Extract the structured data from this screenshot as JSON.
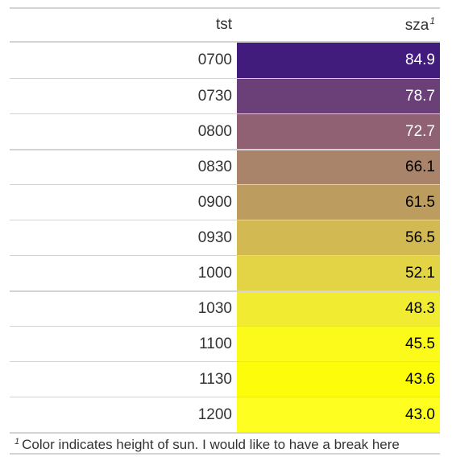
{
  "table": {
    "columns": {
      "tst": "tst",
      "sza": "sza",
      "sza_footnote_mark": "1"
    },
    "rows": [
      {
        "tst": "0700",
        "sza": "84.9",
        "color": "#411c7d",
        "text_light": true
      },
      {
        "tst": "0730",
        "sza": "78.7",
        "color": "#6b4078",
        "text_light": true
      },
      {
        "tst": "0800",
        "sza": "72.7",
        "color": "#8f6172",
        "text_light": true
      },
      {
        "tst": "0830",
        "sza": "66.1",
        "color": "#a9836a",
        "text_light": false
      },
      {
        "tst": "0900",
        "sza": "61.5",
        "color": "#bd9d5f",
        "text_light": false
      },
      {
        "tst": "0930",
        "sza": "56.5",
        "color": "#d2b952",
        "text_light": false
      },
      {
        "tst": "1000",
        "sza": "52.1",
        "color": "#e3d445",
        "text_light": false
      },
      {
        "tst": "1030",
        "sza": "48.3",
        "color": "#f1eb32",
        "text_light": false
      },
      {
        "tst": "1100",
        "sza": "45.5",
        "color": "#fbfa1a",
        "text_light": false
      },
      {
        "tst": "1130",
        "sza": "43.6",
        "color": "#fdfd0b",
        "text_light": false
      },
      {
        "tst": "1200",
        "sza": "43.0",
        "color": "#feff20",
        "text_light": false
      }
    ],
    "footnote": {
      "mark": "1",
      "text": "Color indicates height of sun. I would like to have a break here"
    }
  }
}
